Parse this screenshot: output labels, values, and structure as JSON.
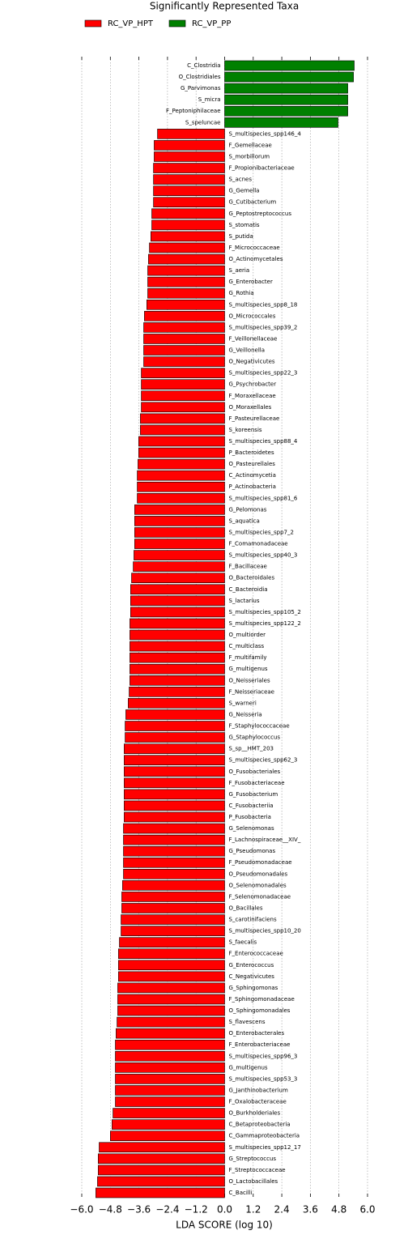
{
  "chart_data": {
    "type": "barh",
    "title": "Significantly Represented Taxa",
    "xlabel": "LDA SCORE (log 10)",
    "categories": [
      "C_Clostridia",
      "O_Clostridiales",
      "G_Parvimonas",
      "S_micra",
      "F_Peptoniphilaceae",
      "S_speluncae",
      "S_multispecies_spp146_4",
      "F_Gemellaceae",
      "S_morbillorum",
      "F_Propionibacteriaceae",
      "S_acnes",
      "G_Gemella",
      "G_Cutibacterium",
      "G_Peptostreptococcus",
      "S_stomatis",
      "S_putida",
      "F_Micrococcaceae",
      "O_Actinomycetales",
      "S_aeria",
      "G_Enterobacter",
      "G_Rothia",
      "S_multispecies_spp8_18",
      "O_Micrococcales",
      "S_multispecies_spp39_2",
      "F_Veillonellaceae",
      "G_Veillonella",
      "O_Negativicutes",
      "S_multispecies_spp22_3",
      "G_Psychrobacter",
      "F_Moraxellaceae",
      "O_Moraxellales",
      "F_Pasteurellaceae",
      "S_koreensis",
      "S_multispecies_spp88_4",
      "P_Bacteroidetes",
      "O_Pasteurellales",
      "C_Actinomycetia",
      "P_Actinobacteria",
      "S_multispecies_spp81_6",
      "G_Pelomonas",
      "S_aquatica",
      "S_multispecies_spp7_2",
      "F_Comamonadaceae",
      "S_multispecies_spp40_3",
      "F_Bacillaceae",
      "O_Bacteroidales",
      "C_Bacteroidia",
      "S_lactarius",
      "S_multispecies_spp105_2",
      "S_multispecies_spp122_2",
      "O_multiorder",
      "C_multiclass",
      "F_multifamily",
      "G_multigenus",
      "O_Neisseriales",
      "F_Neisseriaceae",
      "S_warneri",
      "G_Neisseria",
      "F_Staphylococcaceae",
      "G_Staphylococcus",
      "S_sp__HMT_203",
      "S_multispecies_spp62_3",
      "O_Fusobacteriales",
      "F_Fusobacteriaceae",
      "G_Fusobacterium",
      "C_Fusobacteriia",
      "P_Fusobacteria",
      "G_Selenomonas",
      "F_Lachnospiraceae__XIV_",
      "G_Pseudomonas",
      "F_Pseudomonadaceae",
      "O_Pseudomonadales",
      "O_Selenomonadales",
      "F_Selenomonadaceae",
      "O_Bacillales",
      "S_carotinifaciens",
      "S_multispecies_spp10_20",
      "S_faecalis",
      "F_Enterococcaceae",
      "G_Enterococcus",
      "C_Negativicutes",
      "G_Sphingomonas",
      "F_Sphingomonadaceae",
      "O_Sphingomonadales",
      "S_flavescens",
      "O_Enterobacterales",
      "F_Enterobacteriaceae",
      "S_multispecies_spp96_3",
      "G_multigenus",
      "S_multispecies_spp53_3",
      "G_Janthinobacterium",
      "F_Oxalobacteraceae",
      "O_Burkholderiales",
      "C_Betaproteobacteria",
      "C_Gammaproteobacteria",
      "S_multispecies_spp12_17",
      "G_Streptococcus",
      "F_Streptococcaceae",
      "O_Lactobacillales",
      "C_Bacilli"
    ],
    "series": [
      {
        "name": "RC_VP_HPT",
        "color": "#ff0000",
        "values": [
          null,
          null,
          null,
          null,
          null,
          null,
          -2.82,
          -2.96,
          -2.96,
          -2.99,
          -2.99,
          -2.99,
          -2.99,
          -3.06,
          -3.06,
          -3.1,
          -3.16,
          -3.2,
          -3.23,
          -3.23,
          -3.23,
          -3.27,
          -3.37,
          -3.4,
          -3.4,
          -3.4,
          -3.4,
          -3.5,
          -3.5,
          -3.5,
          -3.5,
          -3.54,
          -3.54,
          -3.61,
          -3.61,
          -3.64,
          -3.67,
          -3.67,
          -3.67,
          -3.78,
          -3.78,
          -3.78,
          -3.78,
          -3.81,
          -3.84,
          -3.91,
          -3.95,
          -3.95,
          -3.95,
          -3.98,
          -3.98,
          -3.98,
          -3.98,
          -3.98,
          -3.98,
          -4.01,
          -4.05,
          -4.15,
          -4.18,
          -4.18,
          -4.22,
          -4.22,
          -4.22,
          -4.22,
          -4.22,
          -4.22,
          -4.22,
          -4.25,
          -4.25,
          -4.25,
          -4.25,
          -4.25,
          -4.29,
          -4.32,
          -4.32,
          -4.35,
          -4.35,
          -4.42,
          -4.46,
          -4.46,
          -4.46,
          -4.49,
          -4.49,
          -4.49,
          -4.52,
          -4.56,
          -4.59,
          -4.59,
          -4.59,
          -4.59,
          -4.59,
          -4.59,
          -4.69,
          -4.73,
          -4.8,
          -5.27,
          -5.31,
          -5.31,
          -5.34,
          -5.41
        ]
      },
      {
        "name": "RC_VP_PP",
        "color": "#008000",
        "values": [
          5.44,
          5.41,
          5.17,
          5.17,
          5.17,
          4.76,
          null,
          null,
          null,
          null,
          null,
          null,
          null,
          null,
          null,
          null,
          null,
          null,
          null,
          null,
          null,
          null,
          null,
          null,
          null,
          null,
          null,
          null,
          null,
          null,
          null,
          null,
          null,
          null,
          null,
          null,
          null,
          null,
          null,
          null,
          null,
          null,
          null,
          null,
          null,
          null,
          null,
          null,
          null,
          null,
          null,
          null,
          null,
          null,
          null,
          null,
          null,
          null,
          null,
          null,
          null,
          null,
          null,
          null,
          null,
          null,
          null,
          null,
          null,
          null,
          null,
          null,
          null,
          null,
          null,
          null,
          null,
          null,
          null,
          null,
          null,
          null,
          null,
          null,
          null,
          null,
          null,
          null,
          null,
          null,
          null,
          null,
          null,
          null,
          null,
          null,
          null,
          null,
          null,
          null
        ]
      }
    ],
    "xlim": [
      -6.0,
      6.0
    ],
    "xticks": [
      {
        "value": -6.0,
        "label": "−6.0"
      },
      {
        "value": -4.8,
        "label": "−4.8"
      },
      {
        "value": -3.6,
        "label": "−3.6"
      },
      {
        "value": -2.4,
        "label": "−2.4"
      },
      {
        "value": -1.2,
        "label": "−1.2"
      },
      {
        "value": 0.0,
        "label": "0.0"
      },
      {
        "value": 1.2,
        "label": "1.2"
      },
      {
        "value": 2.4,
        "label": "2.4"
      },
      {
        "value": 3.6,
        "label": "3.6"
      },
      {
        "value": 4.8,
        "label": "4.8"
      },
      {
        "value": 6.0,
        "label": "6.0"
      }
    ],
    "grid": true
  }
}
